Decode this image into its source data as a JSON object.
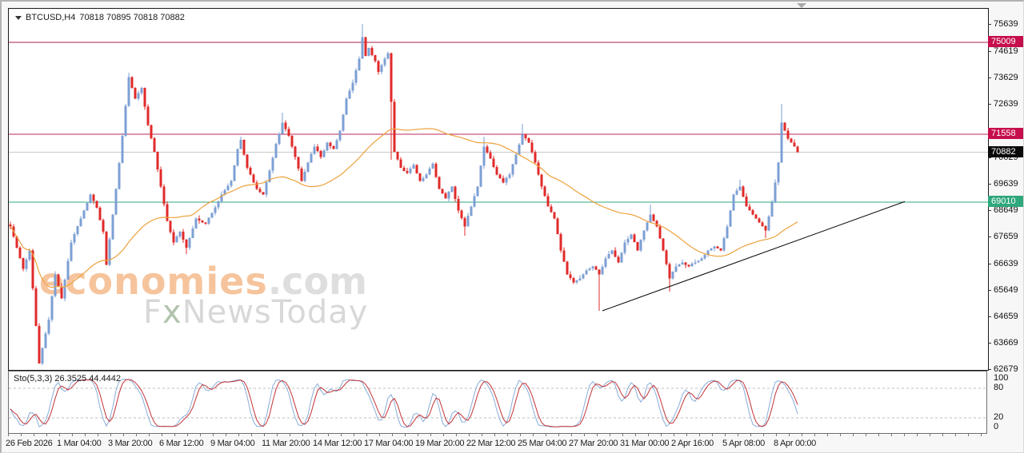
{
  "header": {
    "symbol": "BTCUSD,H4",
    "ohlc": "70818 70895 70818 70882"
  },
  "watermark": {
    "brand": "economies",
    "brand_suffix": ".com",
    "sub_prefix": "F",
    "sub_x": "x",
    "sub_rest": "NewsToday"
  },
  "chart_data": {
    "type": "candlestick",
    "symbol": "BTCUSD",
    "timeframe": "H4",
    "quote": {
      "open": 70818,
      "high": 70895,
      "low": 70818,
      "close": 70882
    },
    "price_axis": {
      "ylim": [
        62708,
        76268
      ],
      "ticks": [
        75639,
        74619,
        73629,
        72639,
        70629,
        69639,
        68649,
        67659,
        66639,
        65649,
        64659,
        63669,
        62679
      ]
    },
    "time_axis": {
      "labels": [
        "26 Feb 2026",
        "1 Mar 04:00",
        "3 Mar 20:00",
        "6 Mar 12:00",
        "9 Mar 04:00",
        "11 Mar 20:00",
        "14 Mar 12:00",
        "17 Mar 04:00",
        "19 Mar 20:00",
        "22 Mar 12:00",
        "25 Mar 04:00",
        "27 Mar 20:00",
        "31 Mar 00:00",
        "2 Apr 16:00",
        "5 Apr 08:00",
        "8 Apr 00:00"
      ]
    },
    "hlines": [
      {
        "price": 75009,
        "label": "75009",
        "line_color": "#a81f4a",
        "badge_bg": "#c60e4c",
        "badge_fg": "#ffffff"
      },
      {
        "price": 71558,
        "label": "71558",
        "line_color": "#bb2a5e",
        "badge_bg": "#c60e4c",
        "badge_fg": "#ffffff"
      },
      {
        "price": 70882,
        "label": "70882",
        "line_color": "#c9c9c9",
        "badge_bg": "#0a0a0a",
        "badge_fg": "#ffffff",
        "current": true
      },
      {
        "price": 69010,
        "label": "69010",
        "line_color": "#2fa87c",
        "badge_bg": "#2fa87c",
        "badge_fg": "#ffffff"
      }
    ],
    "trendline": {
      "bar1": 185,
      "price1": 64928,
      "bar2": 279.5,
      "price2": 69030,
      "color": "#000000"
    },
    "candles": {
      "count": 247,
      "up_color": "#7d9fd4",
      "down_color": "#e02a2a",
      "swings": [
        [
          0,
          68100
        ],
        [
          2,
          67300
        ],
        [
          4,
          66500
        ],
        [
          6,
          67200
        ],
        [
          9,
          62950
        ],
        [
          12,
          64600
        ],
        [
          14,
          66300
        ],
        [
          16,
          65400
        ],
        [
          19,
          67500
        ],
        [
          22,
          68400
        ],
        [
          25,
          69300
        ],
        [
          27,
          68800
        ],
        [
          29,
          67900
        ],
        [
          30,
          66650
        ],
        [
          33,
          69500
        ],
        [
          35,
          71500
        ],
        [
          37,
          73700
        ],
        [
          39,
          72900
        ],
        [
          41,
          73300
        ],
        [
          43,
          71900
        ],
        [
          45,
          70900
        ],
        [
          47,
          69600
        ],
        [
          49,
          68300
        ],
        [
          51,
          67500
        ],
        [
          53,
          67900
        ],
        [
          55,
          67300
        ],
        [
          58,
          68400
        ],
        [
          61,
          68200
        ],
        [
          63,
          68600
        ],
        [
          66,
          69300
        ],
        [
          69,
          69800
        ],
        [
          71,
          71000
        ],
        [
          72,
          71350
        ],
        [
          74,
          70300
        ],
        [
          77,
          69500
        ],
        [
          79,
          69300
        ],
        [
          81,
          70200
        ],
        [
          83,
          71200
        ],
        [
          85,
          72000
        ],
        [
          87,
          71500
        ],
        [
          89,
          70700
        ],
        [
          91,
          69800
        ],
        [
          93,
          70500
        ],
        [
          95,
          71100
        ],
        [
          97,
          70700
        ],
        [
          99,
          71250
        ],
        [
          101,
          71000
        ],
        [
          103,
          71700
        ],
        [
          105,
          72900
        ],
        [
          107,
          73500
        ],
        [
          109,
          74400
        ],
        [
          110,
          75200
        ],
        [
          111,
          74500
        ],
        [
          112,
          74800
        ],
        [
          114,
          74300
        ],
        [
          115,
          73900
        ],
        [
          117,
          74400
        ],
        [
          118,
          74600
        ],
        [
          120,
          70900
        ],
        [
          122,
          70300
        ],
        [
          124,
          70100
        ],
        [
          126,
          70400
        ],
        [
          128,
          69800
        ],
        [
          130,
          70050
        ],
        [
          132,
          70450
        ],
        [
          134,
          69500
        ],
        [
          136,
          69150
        ],
        [
          138,
          69600
        ],
        [
          140,
          68700
        ],
        [
          142,
          68100
        ],
        [
          144,
          68850
        ],
        [
          146,
          69600
        ],
        [
          148,
          71100
        ],
        [
          150,
          70650
        ],
        [
          152,
          70050
        ],
        [
          154,
          69750
        ],
        [
          156,
          70050
        ],
        [
          158,
          70800
        ],
        [
          160,
          71550
        ],
        [
          162,
          71250
        ],
        [
          164,
          70500
        ],
        [
          166,
          69600
        ],
        [
          168,
          68850
        ],
        [
          170,
          68400
        ],
        [
          172,
          67200
        ],
        [
          174,
          66300
        ],
        [
          176,
          66000
        ],
        [
          178,
          66150
        ],
        [
          180,
          66450
        ],
        [
          182,
          66600
        ],
        [
          184,
          66300
        ],
        [
          186,
          66900
        ],
        [
          188,
          67200
        ],
        [
          190,
          66750
        ],
        [
          192,
          67500
        ],
        [
          194,
          67800
        ],
        [
          196,
          67200
        ],
        [
          198,
          67950
        ],
        [
          200,
          68550
        ],
        [
          202,
          68100
        ],
        [
          204,
          67200
        ],
        [
          206,
          66150
        ],
        [
          208,
          66600
        ],
        [
          210,
          66750
        ],
        [
          212,
          66600
        ],
        [
          214,
          66750
        ],
        [
          216,
          66900
        ],
        [
          218,
          67200
        ],
        [
          220,
          67350
        ],
        [
          222,
          67200
        ],
        [
          224,
          68100
        ],
        [
          226,
          69300
        ],
        [
          228,
          69600
        ],
        [
          230,
          68850
        ],
        [
          232,
          68550
        ],
        [
          234,
          68250
        ],
        [
          236,
          67950
        ],
        [
          238,
          69000
        ],
        [
          240,
          70500
        ],
        [
          241,
          72000
        ],
        [
          242,
          71700
        ],
        [
          243,
          71400
        ],
        [
          244,
          71250
        ],
        [
          245,
          71100
        ],
        [
          246,
          70882
        ]
      ],
      "wick_overrides": [
        [
          9,
          "l",
          62950
        ],
        [
          37,
          "h",
          73870
        ],
        [
          55,
          "l",
          67060
        ],
        [
          72,
          "h",
          71470
        ],
        [
          85,
          "h",
          72370
        ],
        [
          110,
          "h",
          75700
        ],
        [
          119,
          "l",
          70600
        ],
        [
          142,
          "l",
          67750
        ],
        [
          148,
          "h",
          71470
        ],
        [
          160,
          "h",
          71950
        ],
        [
          184,
          "l",
          64930
        ],
        [
          200,
          "h",
          68920
        ],
        [
          206,
          "l",
          65650
        ],
        [
          228,
          "h",
          69850
        ],
        [
          236,
          "l",
          67660
        ],
        [
          241,
          "h",
          72700
        ]
      ]
    },
    "ma": {
      "period": 50,
      "color": "#eda13d"
    },
    "stochastic": {
      "label": "Sto(5,3,3)",
      "k_value": "26.3525",
      "d_value": "44.4442",
      "k_color": "#8aadd8",
      "d_color": "#c23338",
      "levels": [
        80,
        20
      ],
      "level_color": "#bcbcbc",
      "scale_labels": [
        100,
        80,
        20,
        0
      ],
      "ylim": [
        0,
        100
      ]
    }
  }
}
